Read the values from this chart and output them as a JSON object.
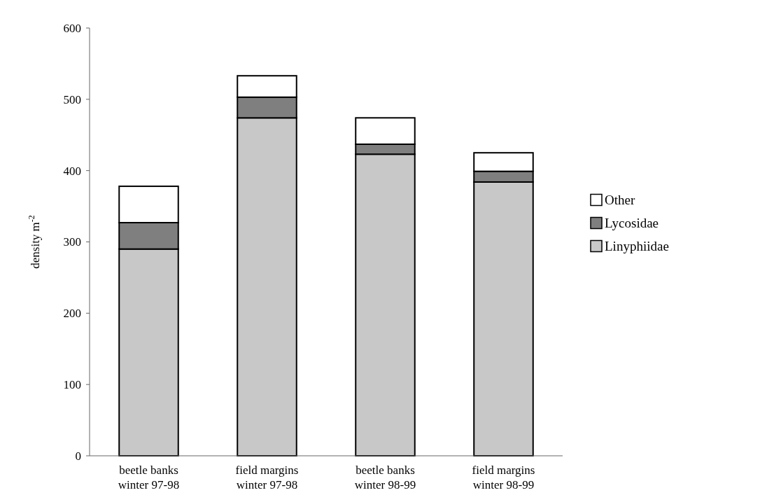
{
  "chart_data": {
    "type": "bar",
    "stacked": true,
    "ylabel": "density m$^{-2}$",
    "categories": [
      "beetle banks\nwinter 97-98",
      "field margins\nwinter 97-98",
      "beetle banks\nwinter 98-99",
      "field margins\nwinter 98-99"
    ],
    "series": [
      {
        "name": "Linyphiidae",
        "color": "#c8c8c8",
        "values": [
          290,
          474,
          423,
          384
        ]
      },
      {
        "name": "Lycosidae",
        "color": "#7f7f7f",
        "values": [
          37,
          29,
          14,
          15
        ]
      },
      {
        "name": "Other",
        "color": "#ffffff",
        "values": [
          51,
          30,
          37,
          26
        ]
      }
    ],
    "ylim": [
      0,
      600
    ],
    "yticks": [
      0,
      100,
      200,
      300,
      400,
      500,
      600
    ],
    "grid": false,
    "legend": "right"
  }
}
